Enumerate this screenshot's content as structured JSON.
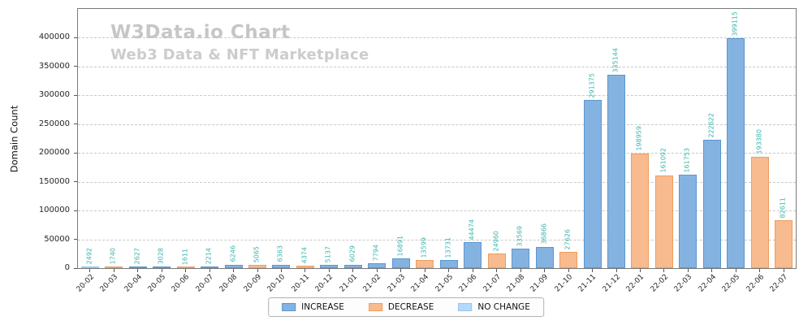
{
  "colors": {
    "increase": {
      "fill": "#85b3e1",
      "edge": "#5a97d0"
    },
    "decrease": {
      "fill": "#f7bb8f",
      "edge": "#f09d5f"
    },
    "nochange": {
      "fill": "#b5d9f8",
      "edge": "#93c6f0"
    },
    "value_label": "#3cb4ab",
    "watermark_title": "#c6c6c6",
    "watermark_subtitle": "#cccccc"
  },
  "legend": {
    "items": [
      {
        "label": "INCREASE",
        "type": "increase"
      },
      {
        "label": "DECREASE",
        "type": "decrease"
      },
      {
        "label": "NO CHANGE",
        "type": "nochange"
      }
    ]
  },
  "chart_data": {
    "type": "bar",
    "title": "W3Data.io Chart",
    "subtitle": "Web3 Data & NFT Marketplace",
    "xlabel": "",
    "ylabel": "Domain Count",
    "ylim": [
      0,
      450000
    ],
    "yticks": [
      0,
      50000,
      100000,
      150000,
      200000,
      250000,
      300000,
      350000,
      400000
    ],
    "grid": "horizontal-dashed",
    "legend_position": "lower-center-outside",
    "legend_entries": [
      "INCREASE",
      "DECREASE",
      "NO CHANGE"
    ],
    "categories": [
      "20-02",
      "20-03",
      "20-04",
      "20-05",
      "20-06",
      "20-07",
      "20-08",
      "20-09",
      "20-10",
      "20-11",
      "20-12",
      "21-01",
      "21-02",
      "21-03",
      "21-04",
      "21-05",
      "21-06",
      "21-07",
      "21-08",
      "21-09",
      "21-10",
      "21-11",
      "21-12",
      "22-01",
      "22-02",
      "22-03",
      "22-04",
      "22-05",
      "22-06",
      "22-07"
    ],
    "values": [
      2492,
      1740,
      2627,
      3028,
      1611,
      2214,
      6246,
      5065,
      6363,
      4374,
      5137,
      6029,
      7794,
      16891,
      13599,
      13731,
      44474,
      24960,
      33569,
      36866,
      27626,
      291375,
      335144,
      198959,
      161092,
      161753,
      222622,
      399115,
      193380,
      82611
    ],
    "bar_types": [
      "nochange",
      "decrease",
      "increase",
      "increase",
      "decrease",
      "increase",
      "increase",
      "decrease",
      "increase",
      "decrease",
      "increase",
      "increase",
      "increase",
      "increase",
      "decrease",
      "increase",
      "increase",
      "decrease",
      "increase",
      "increase",
      "decrease",
      "increase",
      "increase",
      "decrease",
      "decrease",
      "increase",
      "increase",
      "increase",
      "decrease",
      "decrease"
    ]
  }
}
